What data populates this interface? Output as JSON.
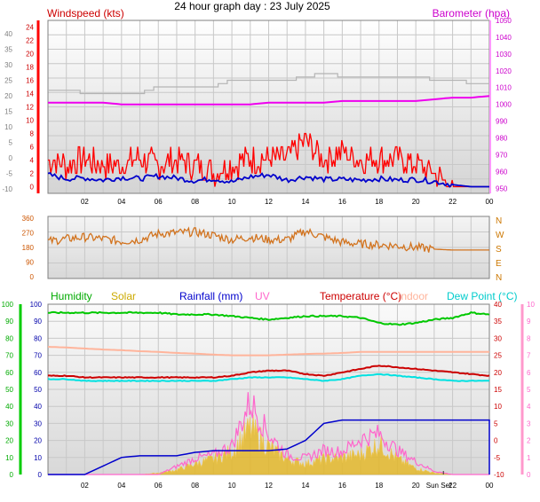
{
  "title": "24 hour graph day : 23 July 2025",
  "colors": {
    "wind_speed": "#ff0000",
    "wind_avg": "#0000cc",
    "barometer": "#ee00ee",
    "baro_grey": "#b4b4b4",
    "direction": "#d2731e",
    "humidity": "#00c800",
    "solar": "#e6b414",
    "rainfall": "#0000cc",
    "uv": "#ff66cc",
    "temperature": "#cc0000",
    "indoor": "#ffb49b",
    "dew_point": "#00e1e1",
    "axis_left_wind": "#ff0000",
    "axis_left_hum": "#00aa00"
  },
  "x_ticks": [
    "02",
    "04",
    "06",
    "08",
    "10",
    "12",
    "14",
    "16",
    "18",
    "20",
    "22",
    "00"
  ],
  "sunset_label": "Sun Set",
  "sunset_hour": 21.5,
  "chart_data": [
    {
      "type": "line",
      "name": "wind-barometer",
      "legend": [
        "Windspeed (kts)",
        "Barometer (hpa)"
      ],
      "left_outer_ticks": [
        "40",
        "35",
        "30",
        "25",
        "20",
        "15",
        "10",
        "5",
        "0",
        "-5",
        "-10"
      ],
      "left_ticks": [
        "24",
        "22",
        "20",
        "18",
        "16",
        "14",
        "12",
        "10",
        "8",
        "6",
        "4",
        "2",
        "0"
      ],
      "right_ticks": [
        "1050",
        "1040",
        "1030",
        "1020",
        "1010",
        "1000",
        "990",
        "980",
        "970",
        "960",
        "950"
      ],
      "wind_ylim": [
        -1,
        25
      ],
      "baro_ylim": [
        947,
        1050
      ],
      "hours": [
        0,
        1,
        2,
        3,
        4,
        5,
        6,
        7,
        8,
        9,
        10,
        11,
        12,
        13,
        14,
        15,
        16,
        17,
        18,
        19,
        20,
        21,
        22,
        23,
        24
      ],
      "series": [
        {
          "name": "Windspeed (kts)",
          "values": [
            4,
            3,
            4,
            3,
            3,
            4,
            3,
            4,
            3,
            2,
            3,
            4,
            4,
            4,
            7,
            4,
            5,
            4,
            4,
            4,
            3,
            2,
            0,
            0,
            0
          ]
        },
        {
          "name": "Barometer (hpa)",
          "values": [
            1001,
            1001,
            1001,
            1001,
            1000,
            1000,
            1000,
            1000,
            1000,
            1000,
            1000,
            1000,
            1001,
            1001,
            1001,
            1001,
            1002,
            1002,
            1002,
            1002,
            1002,
            1003,
            1004,
            1004,
            1005
          ]
        },
        {
          "values": [
            14.5,
            14.5,
            14,
            14,
            14,
            14,
            15,
            15,
            15,
            15,
            16,
            16,
            16,
            16,
            16.5,
            17,
            16.5,
            16.5,
            16.5,
            16.5,
            16.5,
            16,
            16,
            15.5,
            15.5
          ]
        },
        {
          "values": [
            1.8,
            1.2,
            1.3,
            1.0,
            1.4,
            1.2,
            1.6,
            1.3,
            0.9,
            1.2,
            0.7,
            1.5,
            1.8,
            1.0,
            1.5,
            1.1,
            1.1,
            1.0,
            1.2,
            1.0,
            1.1,
            0.8,
            0.3,
            0,
            0
          ]
        }
      ]
    },
    {
      "type": "line",
      "name": "wind-direction",
      "left_ticks": [
        "360",
        "270",
        "180",
        "90",
        "0"
      ],
      "right_labels": [
        "N",
        "W",
        "S",
        "E",
        "N"
      ],
      "ylim": [
        0,
        360
      ],
      "hours": [
        0,
        1,
        2,
        3,
        4,
        5,
        6,
        7,
        8,
        9,
        10,
        11,
        12,
        13,
        14,
        15,
        16,
        17,
        18,
        19,
        20,
        21,
        22,
        23,
        24
      ],
      "values": [
        215,
        230,
        240,
        230,
        215,
        225,
        260,
        265,
        270,
        250,
        225,
        240,
        225,
        225,
        275,
        240,
        210,
        200,
        195,
        190,
        180,
        170,
        165,
        165,
        165
      ]
    },
    {
      "type": "line",
      "name": "humidity-temperature-rain",
      "legend": [
        "Humidity",
        "Solar",
        "Rainfall (mm)",
        "UV",
        "Temperature (°C)",
        "Indoor",
        "Dew Point (°C)"
      ],
      "left_outer_ticks": [
        "100",
        "90",
        "80",
        "70",
        "60",
        "50",
        "40",
        "30",
        "20",
        "10",
        "0"
      ],
      "left_ticks": [
        "100",
        "90",
        "80",
        "70",
        "60",
        "50",
        "40",
        "30",
        "20",
        "10",
        "0"
      ],
      "right_ticks": [
        "40",
        "35",
        "30",
        "25",
        "20",
        "15",
        "10",
        "5",
        "0",
        "-5",
        "-10"
      ],
      "right_outer_ticks": [
        "10",
        "9",
        "8",
        "7",
        "6",
        "5",
        "4",
        "3",
        "2",
        "1",
        "0"
      ],
      "percent_ylim": [
        0,
        100
      ],
      "temp_ylim": [
        -10,
        40
      ],
      "hours": [
        0,
        1,
        2,
        3,
        4,
        5,
        6,
        7,
        8,
        9,
        10,
        11,
        12,
        13,
        14,
        15,
        16,
        17,
        18,
        19,
        20,
        21,
        22,
        23,
        24
      ],
      "series": [
        {
          "name": "Humidity",
          "values": [
            95,
            95,
            95,
            95,
            95,
            95,
            95,
            94,
            94,
            94,
            93,
            92,
            91,
            92,
            93,
            93,
            93,
            92,
            89,
            88,
            89,
            91,
            92,
            95,
            94
          ]
        },
        {
          "name": "Solar",
          "values": [
            0,
            0,
            0,
            0,
            0,
            0,
            1,
            3,
            7,
            10,
            15,
            30,
            18,
            10,
            7,
            10,
            11,
            13,
            20,
            10,
            4,
            1,
            0,
            0,
            0
          ]
        },
        {
          "name": "Rainfall (mm)",
          "values": [
            0,
            0,
            0,
            5,
            10,
            11,
            11,
            11,
            13,
            14,
            14,
            14,
            14,
            15,
            20,
            30,
            32,
            32,
            32,
            32,
            32,
            32,
            32,
            32,
            32
          ]
        },
        {
          "name": "UV",
          "values": [
            0,
            0,
            0,
            0,
            0,
            0,
            0,
            5,
            10,
            12,
            18,
            45,
            25,
            12,
            10,
            15,
            14,
            22,
            25,
            15,
            8,
            2,
            0,
            0,
            0
          ]
        },
        {
          "name": "Temperature (°C)",
          "values": [
            19,
            19,
            18.5,
            18.5,
            18.5,
            18.5,
            18.5,
            18.5,
            18.5,
            18.5,
            19,
            20,
            20.5,
            20.5,
            19.5,
            19,
            20,
            21,
            22,
            21.5,
            21,
            20.5,
            20,
            19.5,
            19
          ]
        },
        {
          "name": "Indoor",
          "values": [
            27.5,
            27.3,
            27,
            26.7,
            26.5,
            26.2,
            26,
            25.7,
            25.5,
            25.2,
            25,
            25,
            25,
            25.2,
            25.4,
            25.5,
            25.7,
            26,
            26,
            26,
            26,
            26,
            26,
            26,
            26
          ]
        },
        {
          "name": "Dew Point (°C)",
          "values": [
            18,
            18,
            17.5,
            17.5,
            17.5,
            17.5,
            17.5,
            17.5,
            17.5,
            17.5,
            18,
            18.5,
            18.5,
            18.5,
            18,
            17.5,
            18,
            19,
            19.5,
            19,
            18.5,
            18,
            17.5,
            17.5,
            17.5
          ]
        }
      ]
    }
  ]
}
